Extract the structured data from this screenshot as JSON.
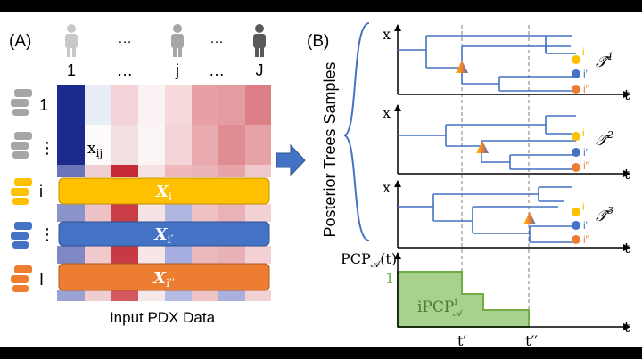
{
  "panel_a": {
    "label": "(A)",
    "patient_labels": [
      "1",
      "…",
      "j",
      "…",
      "J"
    ],
    "patient_ellipses": [
      "…",
      "…"
    ],
    "row_labels": [
      "1",
      "⋮",
      "i",
      "⋮",
      "I"
    ],
    "cell_label": "x",
    "cell_subscript": "ij",
    "bars": [
      {
        "base": "X",
        "sub": "i",
        "color": "#ffc000"
      },
      {
        "base": "X",
        "sub": "i′",
        "color": "#4472c4"
      },
      {
        "base": "X",
        "sub": "i′′",
        "color": "#ed7d31"
      }
    ],
    "caption": "Input PDX Data"
  },
  "panel_b": {
    "label": "(B)",
    "side_label": "Posterior Trees Samples",
    "trees": [
      {
        "x_axis": "x",
        "t_axis": "t",
        "name": "𝒯̂",
        "sup": "1",
        "leaves": [
          "i",
          "i′",
          "i′′"
        ]
      },
      {
        "x_axis": "x",
        "t_axis": "t",
        "name": "𝒯̂",
        "sup": "2",
        "leaves": [
          "i",
          "i′",
          "i′′"
        ]
      },
      {
        "x_axis": "x",
        "t_axis": "t",
        "name": "𝒯̂",
        "sup": "3",
        "leaves": [
          "i",
          "i′",
          "i′′"
        ]
      }
    ],
    "pcp": {
      "y_label": "PCP",
      "y_sub": "𝒜",
      "y_arg": "(t)",
      "one": "1",
      "t_axis": "t",
      "area_label": "iPCP",
      "area_sup": "i",
      "area_sub": "𝒜",
      "t_prime": "t′",
      "t_double": "t′′",
      "area_color": "#a9d18e",
      "line_color": "#70ad47"
    }
  },
  "colors": {
    "yellow": "#ffc000",
    "blue": "#4472c4",
    "orange": "#ed7d31",
    "tree_line": "#4472c4",
    "dark_blue": "#1f3d99"
  }
}
